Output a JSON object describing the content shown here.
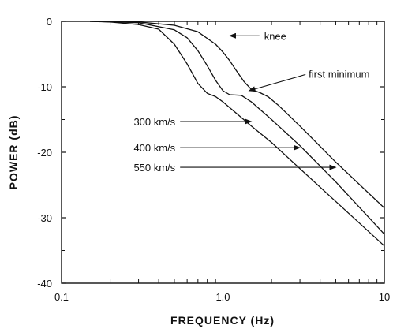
{
  "chart_data": {
    "type": "line",
    "title": "",
    "xlabel": "FREQUENCY (Hz)",
    "ylabel": "POWER (dB)",
    "xscale": "log",
    "xlim": [
      0.1,
      10
    ],
    "ylim": [
      -40,
      0
    ],
    "grid": false,
    "x_ticks": [
      0.1,
      1.0,
      10
    ],
    "x_tick_labels": [
      "0.1",
      "1.0",
      "10"
    ],
    "y_ticks": [
      0,
      -10,
      -20,
      -30,
      -40
    ],
    "y_tick_labels": [
      "0",
      "-10",
      "-20",
      "-30",
      "-40"
    ],
    "series": [
      {
        "name": "300 km/s",
        "points": [
          [
            0.15,
            0
          ],
          [
            0.2,
            -0.1
          ],
          [
            0.3,
            -0.5
          ],
          [
            0.4,
            -1.2
          ],
          [
            0.5,
            -3.5
          ],
          [
            0.6,
            -6.5
          ],
          [
            0.7,
            -9.5
          ],
          [
            0.8,
            -11
          ],
          [
            0.9,
            -11.5
          ],
          [
            1.0,
            -12.3
          ],
          [
            1.5,
            -16
          ],
          [
            2,
            -18.5
          ],
          [
            3,
            -22.5
          ],
          [
            5,
            -27.5
          ],
          [
            10,
            -34.3
          ]
        ]
      },
      {
        "name": "400 km/s",
        "points": [
          [
            0.15,
            0
          ],
          [
            0.3,
            -0.2
          ],
          [
            0.5,
            -1.3
          ],
          [
            0.6,
            -2.5
          ],
          [
            0.7,
            -4.5
          ],
          [
            0.8,
            -6.8
          ],
          [
            0.9,
            -9
          ],
          [
            1.0,
            -10.6
          ],
          [
            1.1,
            -11.2
          ],
          [
            1.3,
            -11.3
          ],
          [
            1.5,
            -12.3
          ],
          [
            2,
            -15
          ],
          [
            3,
            -19
          ],
          [
            5,
            -24.5
          ],
          [
            10,
            -32.5
          ]
        ]
      },
      {
        "name": "550 km/s",
        "points": [
          [
            0.15,
            0
          ],
          [
            0.3,
            -0.1
          ],
          [
            0.5,
            -0.6
          ],
          [
            0.7,
            -1.6
          ],
          [
            0.9,
            -3.5
          ],
          [
            1.0,
            -4.7
          ],
          [
            1.1,
            -6
          ],
          [
            1.2,
            -7.4
          ],
          [
            1.35,
            -9.2
          ],
          [
            1.5,
            -10.4
          ],
          [
            1.7,
            -10.9
          ],
          [
            1.9,
            -11.5
          ],
          [
            2.2,
            -12.8
          ],
          [
            3,
            -16
          ],
          [
            5,
            -21.5
          ],
          [
            10,
            -28.5
          ]
        ]
      }
    ],
    "annotations": [
      {
        "text": "knee",
        "arrow_to": [
          1.1,
          -2.2
        ],
        "text_at": [
          1.8,
          -2.2
        ]
      },
      {
        "text": "first minimum",
        "arrow_to": [
          1.45,
          -10.6
        ],
        "text_at": [
          3.4,
          -8
        ]
      },
      {
        "text": "300 km/s",
        "arrow_to": [
          1.5,
          -15.3
        ],
        "text_at": [
          0.28,
          -15.3
        ]
      },
      {
        "text": "400 km/s",
        "arrow_to": [
          3.0,
          -19.3
        ],
        "text_at": [
          0.28,
          -19.3
        ]
      },
      {
        "text": "550 km/s",
        "arrow_to": [
          5.0,
          -22.3
        ],
        "text_at": [
          0.28,
          -22.3
        ]
      }
    ]
  }
}
